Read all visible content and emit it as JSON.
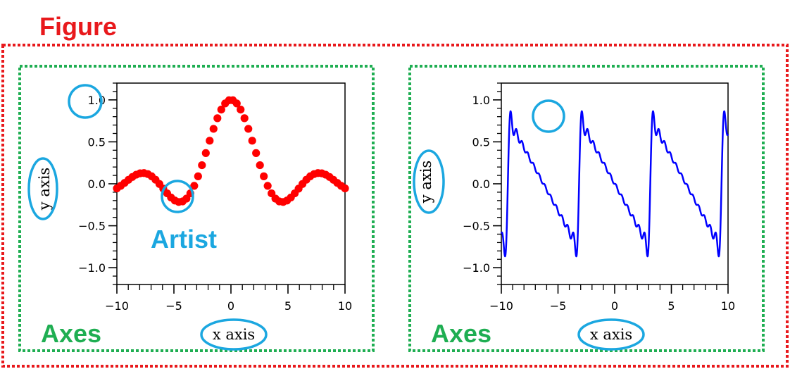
{
  "figure_label": "Figure",
  "axes_label": "Axes",
  "artist_label": "Artist",
  "x_axis_label": "x axis",
  "y_axis_label": "y axis",
  "colors": {
    "figure": "#e8191c",
    "axes": "#1fae52",
    "annotation": "#1ba7e0",
    "left_series": "#ff0000",
    "right_series": "#0000ff"
  },
  "chart_data": [
    {
      "type": "scatter",
      "title": "",
      "xlabel": "x axis",
      "ylabel": "y axis",
      "xlim": [
        -10,
        10
      ],
      "ylim": [
        -1.2,
        1.2
      ],
      "x_ticks": [
        -10,
        -5,
        0,
        5,
        10
      ],
      "x_tick_labels": [
        "−10",
        "−5",
        "0",
        "5",
        "10"
      ],
      "y_ticks": [
        -1.0,
        -0.5,
        0.0,
        0.5,
        1.0
      ],
      "y_tick_labels": [
        "−1.0",
        "−0.5",
        "0.0",
        "0.5",
        "1.0"
      ],
      "series": [
        {
          "function": "sin(x)/x",
          "x_min": -10,
          "x_max": 10,
          "points": 60,
          "color": "#ff0000"
        }
      ]
    },
    {
      "type": "line",
      "title": "",
      "xlabel": "x axis",
      "ylabel": "y axis",
      "xlim": [
        -10,
        10
      ],
      "ylim": [
        -1.2,
        1.2
      ],
      "x_ticks": [
        -10,
        -5,
        0,
        5,
        10
      ],
      "x_tick_labels": [
        "−10",
        "−5",
        "0",
        "5",
        "10"
      ],
      "y_ticks": [
        -1.0,
        -0.5,
        0.0,
        0.5,
        1.0
      ],
      "y_tick_labels": [
        "−1.0",
        "−0.5",
        "0.0",
        "0.5",
        "1.0"
      ],
      "series": [
        {
          "function": "sawtooth (Fourier series)",
          "x_min": -10,
          "x_max": 10,
          "color": "#0000ff"
        }
      ]
    }
  ]
}
